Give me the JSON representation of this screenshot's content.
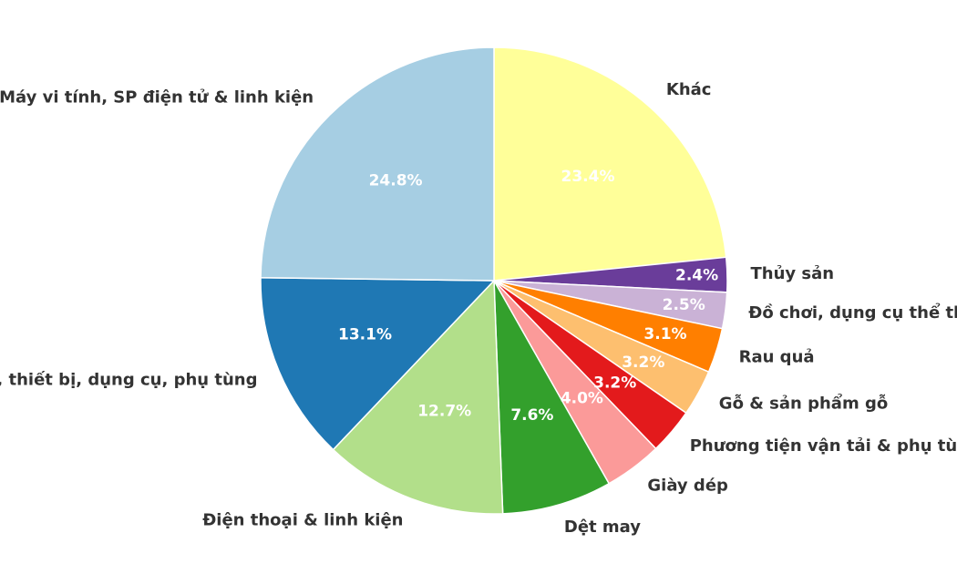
{
  "chart_data": {
    "type": "pie",
    "title": "",
    "categories": [
      "Khác",
      "Thủy sản",
      "Đồ chơi, dụng cụ thể thao",
      "Rau quả",
      "Gỗ & sản phẩm gỗ",
      "Phương tiện vận tải & phụ tùng",
      "Giày dép",
      "Dệt may",
      "Điện thoại & linh kiện",
      "Máy móc, thiết bị, dụng cụ, phụ tùng",
      "Máy vi tính, SP điện tử & linh kiện"
    ],
    "values": [
      23.4,
      2.4,
      2.5,
      3.1,
      3.2,
      3.2,
      4.0,
      7.6,
      12.7,
      13.1,
      24.8
    ],
    "labels": [
      "23.4%",
      "2.4%",
      "2.5%",
      "3.1%",
      "3.2%",
      "3.2%",
      "4.0%",
      "7.6%",
      "12.7%",
      "13.1%",
      "24.8%"
    ],
    "colors": [
      "#ffff99",
      "#6a3d9a",
      "#cab2d6",
      "#ff7f00",
      "#fdbf6f",
      "#e31a1c",
      "#fb9a99",
      "#33a02c",
      "#b2df8a",
      "#1f78b4",
      "#a6cee3"
    ],
    "start_angle": "12 o'clock",
    "direction": "clockwise",
    "legend": "none"
  }
}
